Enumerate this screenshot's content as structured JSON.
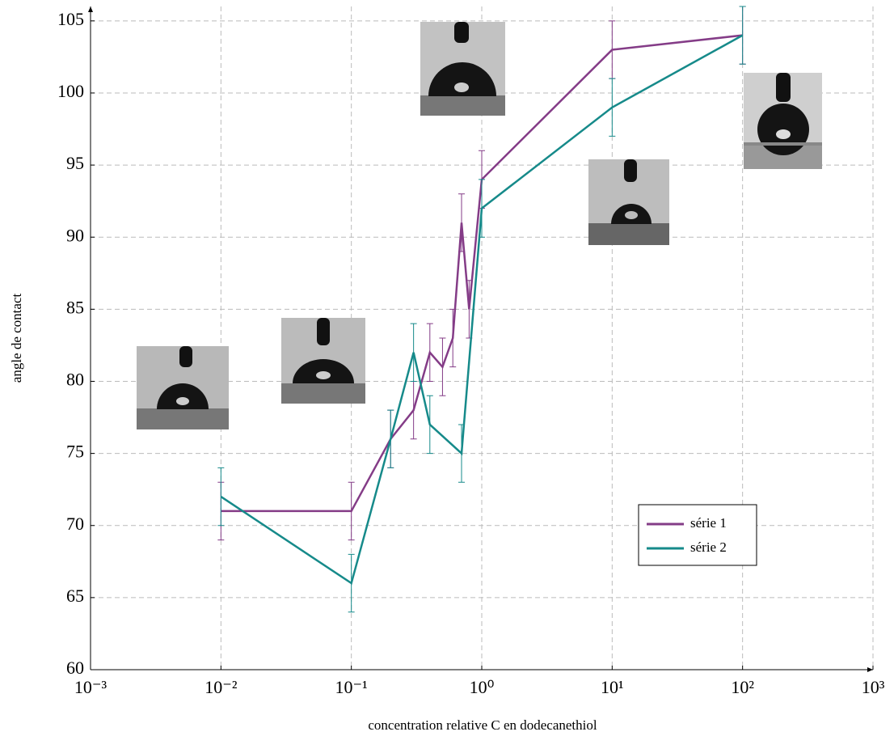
{
  "chart_data": {
    "type": "line",
    "x_label": "concentration relative C en dodecanethiol",
    "y_label": "angle de contact",
    "log_x": true,
    "grid": true,
    "xlim": [
      0.001,
      1000
    ],
    "xticks": [
      {
        "value": 0.001,
        "label": "10⁻³"
      },
      {
        "value": 0.01,
        "label": "10⁻²"
      },
      {
        "value": 0.1,
        "label": "10⁻¹"
      },
      {
        "value": 1,
        "label": "10⁰"
      },
      {
        "value": 10,
        "label": "10¹"
      },
      {
        "value": 100,
        "label": "10²"
      },
      {
        "value": 1000,
        "label": "10³"
      }
    ],
    "ylim": [
      60,
      106
    ],
    "yticks": [
      60,
      65,
      70,
      75,
      80,
      85,
      90,
      95,
      100,
      105
    ],
    "series": [
      {
        "name": "série 1",
        "color": "#843c87",
        "x": [
          0.01,
          0.1,
          0.2,
          0.3,
          0.4,
          0.5,
          0.6,
          0.7,
          0.8,
          1,
          10,
          100
        ],
        "values": [
          71,
          71,
          76,
          78,
          82,
          81,
          83,
          91,
          85,
          94,
          103,
          104
        ],
        "errors": [
          2,
          2,
          2,
          2,
          2,
          2,
          2,
          2,
          2,
          2,
          2,
          2
        ]
      },
      {
        "name": "série 2",
        "color": "#168a8a",
        "x": [
          0.01,
          0.1,
          0.2,
          0.3,
          0.4,
          0.7,
          1,
          10,
          100
        ],
        "values": [
          72,
          66,
          76,
          82,
          77,
          75,
          92,
          99,
          104
        ],
        "errors": [
          2,
          2,
          2,
          2,
          2,
          2,
          2,
          2,
          2
        ]
      }
    ]
  }
}
